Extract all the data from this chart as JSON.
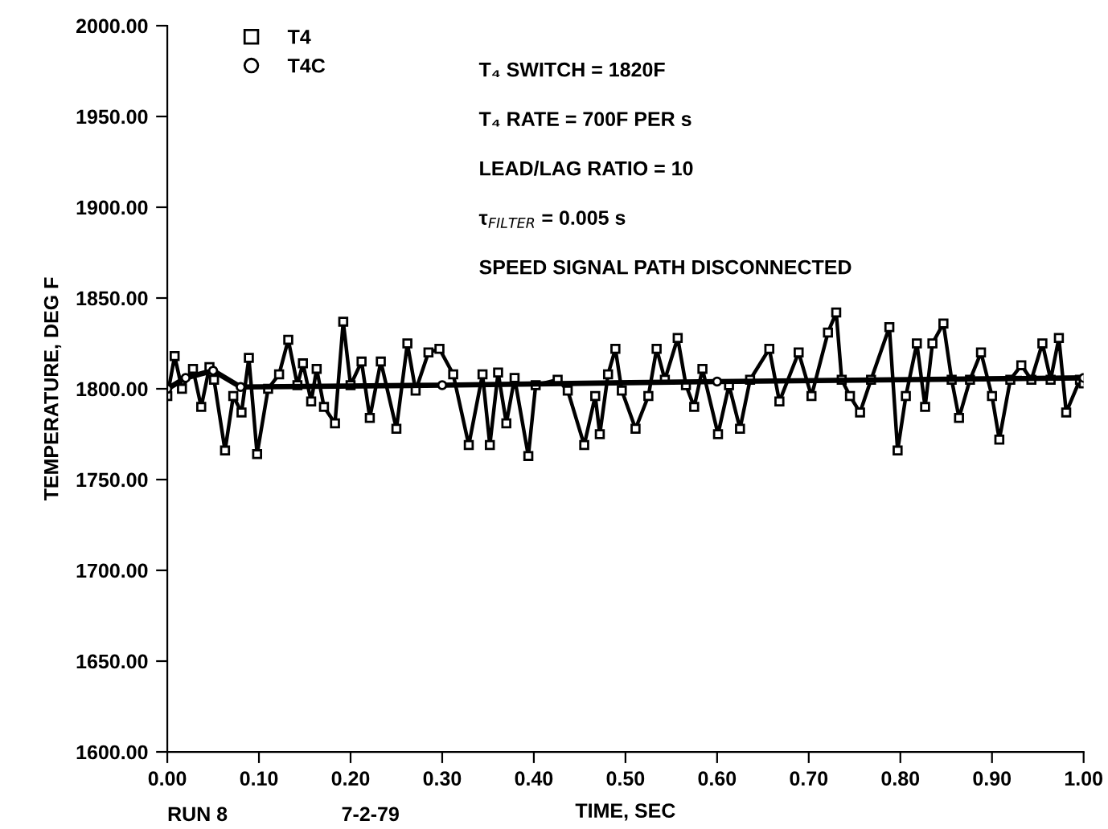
{
  "chart_data": {
    "type": "line",
    "xlabel": "TIME, SEC",
    "ylabel": "TEMPERATURE, DEG F",
    "xlim": [
      0,
      1
    ],
    "ylim": [
      1600,
      2000
    ],
    "xticks": [
      {
        "value": 0,
        "label": "0.00"
      },
      {
        "value": 0.1,
        "label": "0.10"
      },
      {
        "value": 0.2,
        "label": "0.20"
      },
      {
        "value": 0.3,
        "label": "0.30"
      },
      {
        "value": 0.4,
        "label": "0.40"
      },
      {
        "value": 0.5,
        "label": "0.50"
      },
      {
        "value": 0.6,
        "label": "0.60"
      },
      {
        "value": 0.7,
        "label": "0.70"
      },
      {
        "value": 0.8,
        "label": "0.80"
      },
      {
        "value": 0.9,
        "label": "0.90"
      },
      {
        "value": 1,
        "label": "1.00"
      }
    ],
    "yticks": [
      {
        "value": 1600,
        "label": "1600.00"
      },
      {
        "value": 1650,
        "label": "1650.00"
      },
      {
        "value": 1700,
        "label": "1700.00"
      },
      {
        "value": 1750,
        "label": "1750.00"
      },
      {
        "value": 1800,
        "label": "1800.00"
      },
      {
        "value": 1850,
        "label": "1850.00"
      },
      {
        "value": 1900,
        "label": "1900.00"
      },
      {
        "value": 1950,
        "label": "1950.00"
      },
      {
        "value": 2000,
        "label": "2000.00"
      }
    ],
    "grid": false,
    "legend": "top left",
    "line_style": "solid",
    "series": [
      {
        "name": "T4",
        "color": "#000000",
        "marker": "square",
        "x": [
          0.0,
          0.008,
          0.016,
          0.028,
          0.037,
          0.046,
          0.051,
          0.063,
          0.072,
          0.081,
          0.089,
          0.098,
          0.11,
          0.122,
          0.132,
          0.142,
          0.148,
          0.157,
          0.163,
          0.171,
          0.183,
          0.192,
          0.2,
          0.212,
          0.221,
          0.233,
          0.25,
          0.262,
          0.271,
          0.285,
          0.297,
          0.312,
          0.329,
          0.344,
          0.352,
          0.361,
          0.37,
          0.379,
          0.394,
          0.402,
          0.426,
          0.437,
          0.455,
          0.467,
          0.472,
          0.481,
          0.489,
          0.496,
          0.511,
          0.525,
          0.534,
          0.543,
          0.557,
          0.566,
          0.575,
          0.584,
          0.601,
          0.613,
          0.625,
          0.636,
          0.657,
          0.668,
          0.689,
          0.703,
          0.721,
          0.73,
          0.736,
          0.745,
          0.756,
          0.768,
          0.788,
          0.797,
          0.806,
          0.818,
          0.827,
          0.835,
          0.847,
          0.856,
          0.864,
          0.876,
          0.888,
          0.9,
          0.908,
          0.92,
          0.932,
          0.943,
          0.955,
          0.964,
          0.973,
          0.981,
          0.996,
          1.0
        ],
        "values": [
          1796,
          1818,
          1800,
          1811,
          1790,
          1812,
          1805,
          1766,
          1796,
          1787,
          1817,
          1764,
          1800,
          1808,
          1827,
          1802,
          1814,
          1793,
          1811,
          1790,
          1781,
          1837,
          1802,
          1815,
          1784,
          1815,
          1778,
          1825,
          1799,
          1820,
          1822,
          1808,
          1769,
          1808,
          1769,
          1809,
          1781,
          1806,
          1763,
          1802,
          1805,
          1799,
          1769,
          1796,
          1775,
          1808,
          1822,
          1799,
          1778,
          1796,
          1822,
          1805,
          1828,
          1802,
          1790,
          1811,
          1775,
          1802,
          1778,
          1805,
          1822,
          1793,
          1820,
          1796,
          1831,
          1842,
          1805,
          1796,
          1787,
          1805,
          1834,
          1766,
          1796,
          1825,
          1790,
          1825,
          1836,
          1805,
          1784,
          1805,
          1820,
          1796,
          1772,
          1805,
          1813,
          1805,
          1825,
          1805,
          1828,
          1787,
          1805,
          1803
        ]
      },
      {
        "name": "T4C",
        "color": "#000000",
        "marker": "circle",
        "x": [
          0.0,
          0.02,
          0.05,
          0.08,
          0.3,
          0.6,
          1.0
        ],
        "values": [
          1800,
          1806,
          1810,
          1801,
          1802,
          1804,
          1806
        ]
      }
    ],
    "annotations": [
      "T₄ SWITCH = 1820F",
      "T₄ RATE = 700F PER s",
      "LEAD/LAG RATIO = 10",
      "τ$_{FILTER}$ = 0.005 s",
      "SPEED SIGNAL PATH DISCONNECTED",
      "RUN 8",
      "7-2-79"
    ]
  }
}
